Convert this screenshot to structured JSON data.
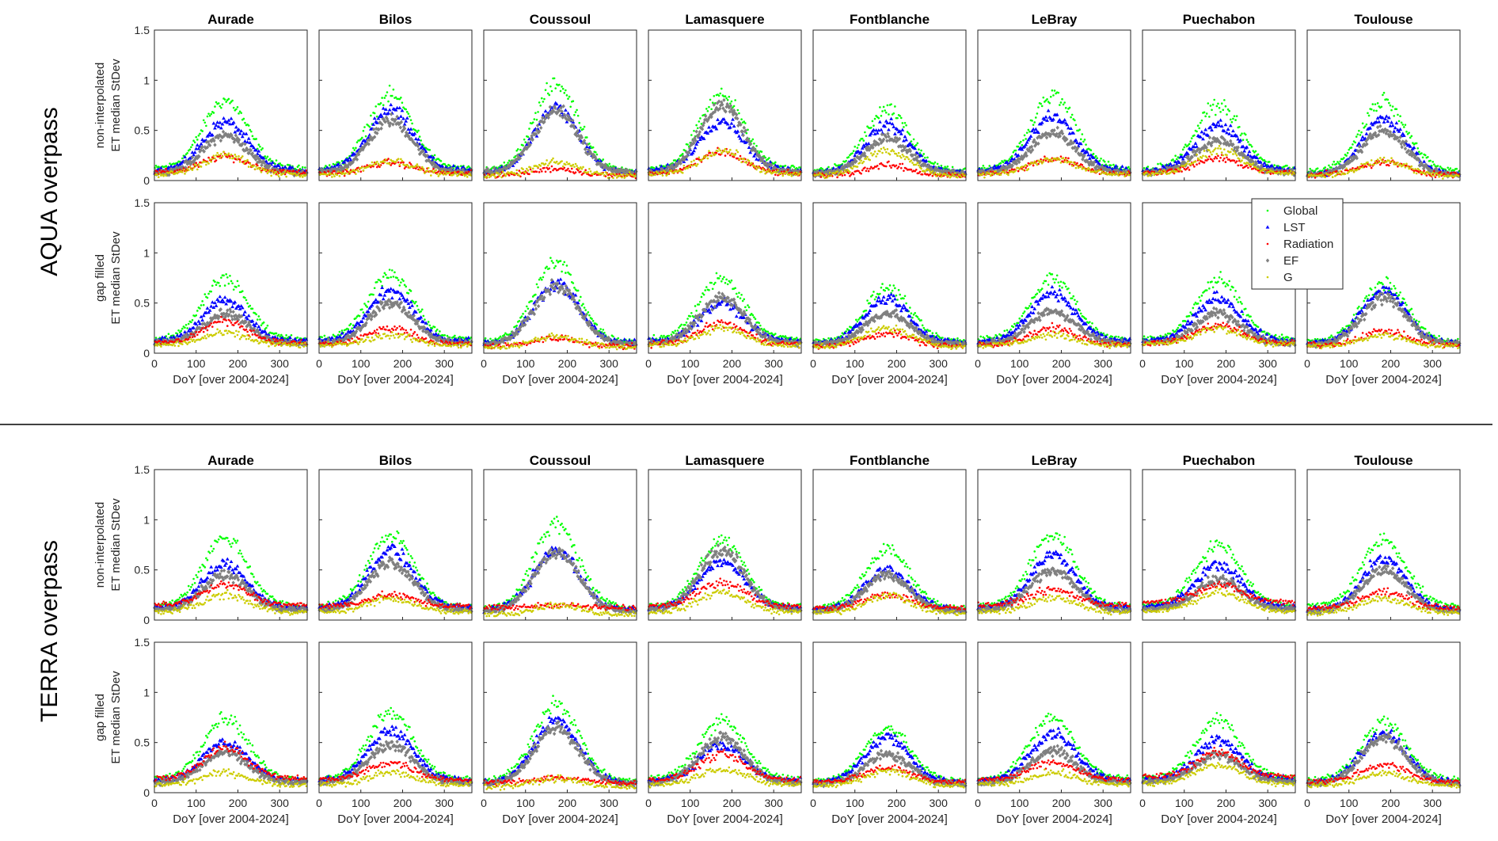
{
  "figure": {
    "blocks": [
      {
        "label": "AQUA overpass",
        "rows": [
          {
            "ylabel_line1": "non-interpolated",
            "ylabel_line2": "ET median StDev"
          },
          {
            "ylabel_line1": "gap filled",
            "ylabel_line2": "ET median StDev"
          }
        ]
      },
      {
        "label": "TERRA overpass",
        "rows": [
          {
            "ylabel_line1": "non-interpolated",
            "ylabel_line2": "ET median StDev"
          },
          {
            "ylabel_line1": "gap filled",
            "ylabel_line2": "ET median StDev"
          }
        ]
      }
    ],
    "sites": [
      "Aurade",
      "Bilos",
      "Coussoul",
      "Lamasquere",
      "Fontblanche",
      "LeBray",
      "Puechabon",
      "Toulouse"
    ],
    "xlabel": "DoY [over 2004-2024]"
  },
  "chart_data": {
    "type": "scatter",
    "layout": "small-multiples grid: 2 overpass blocks x 2 rows x 8 sites",
    "x_axis": {
      "label": "DoY [over 2004-2024]",
      "range": [
        0,
        366
      ],
      "ticks": [
        0,
        100,
        200,
        300
      ]
    },
    "y_axis": {
      "range": [
        0,
        1.5
      ],
      "ticks": [
        0,
        0.5,
        1,
        1.5
      ],
      "tick_labels": [
        "0",
        "0.5",
        "1",
        "1.5"
      ]
    },
    "grid": false,
    "legend": {
      "placement": "right of Puechabon, AQUA gap filled panel",
      "entries": [
        "Global",
        "LST",
        "Radiation",
        "EF",
        "G"
      ]
    },
    "series": [
      {
        "name": "Global",
        "color": "#00ff00",
        "marker": "dot"
      },
      {
        "name": "LST",
        "color": "#0000ff",
        "marker": "triangle"
      },
      {
        "name": "Radiation",
        "color": "#ff0000",
        "marker": "dot"
      },
      {
        "name": "EF",
        "color": "#808080",
        "marker": "diamond"
      },
      {
        "name": "G",
        "color": "#cccc00",
        "marker": "dot"
      }
    ],
    "series_shape_note": "Each series rises from a winter base near DoY 0 and 365 to a summer peak near DoY 170-190; values below are [peak, base] in StDev units per site.",
    "panels": {
      "AQUA_non_interpolated": {
        "Aurade": {
          "Global": [
            0.8,
            0.12
          ],
          "LST": [
            0.58,
            0.1
          ],
          "Radiation": [
            0.24,
            0.08
          ],
          "EF": [
            0.45,
            0.08
          ],
          "G": [
            0.25,
            0.06
          ]
        },
        "Bilos": {
          "Global": [
            0.85,
            0.12
          ],
          "LST": [
            0.7,
            0.1
          ],
          "Radiation": [
            0.18,
            0.07
          ],
          "EF": [
            0.6,
            0.08
          ],
          "G": [
            0.2,
            0.06
          ]
        },
        "Coussoul": {
          "Global": [
            0.95,
            0.1
          ],
          "LST": [
            0.72,
            0.08
          ],
          "Radiation": [
            0.12,
            0.05
          ],
          "EF": [
            0.7,
            0.08
          ],
          "G": [
            0.18,
            0.05
          ]
        },
        "Lamasquere": {
          "Global": [
            0.85,
            0.12
          ],
          "LST": [
            0.6,
            0.1
          ],
          "Radiation": [
            0.28,
            0.07
          ],
          "EF": [
            0.75,
            0.08
          ],
          "G": [
            0.3,
            0.06
          ]
        },
        "Fontblanche": {
          "Global": [
            0.7,
            0.1
          ],
          "LST": [
            0.55,
            0.08
          ],
          "Radiation": [
            0.15,
            0.05
          ],
          "EF": [
            0.42,
            0.07
          ],
          "G": [
            0.3,
            0.05
          ]
        },
        "LeBray": {
          "Global": [
            0.85,
            0.12
          ],
          "LST": [
            0.65,
            0.1
          ],
          "Radiation": [
            0.22,
            0.07
          ],
          "EF": [
            0.48,
            0.08
          ],
          "G": [
            0.22,
            0.06
          ]
        },
        "Puechabon": {
          "Global": [
            0.75,
            0.12
          ],
          "LST": [
            0.55,
            0.1
          ],
          "Radiation": [
            0.22,
            0.08
          ],
          "EF": [
            0.4,
            0.08
          ],
          "G": [
            0.3,
            0.07
          ]
        },
        "Toulouse": {
          "Global": [
            0.8,
            0.1
          ],
          "LST": [
            0.62,
            0.06
          ],
          "Radiation": [
            0.18,
            0.06
          ],
          "EF": [
            0.5,
            0.06
          ],
          "G": [
            0.2,
            0.05
          ]
        }
      },
      "AQUA_gap_filled": {
        "Aurade": {
          "Global": [
            0.75,
            0.14
          ],
          "LST": [
            0.52,
            0.12
          ],
          "Radiation": [
            0.32,
            0.1
          ],
          "EF": [
            0.4,
            0.1
          ],
          "G": [
            0.2,
            0.08
          ]
        },
        "Bilos": {
          "Global": [
            0.8,
            0.14
          ],
          "LST": [
            0.62,
            0.12
          ],
          "Radiation": [
            0.25,
            0.09
          ],
          "EF": [
            0.5,
            0.1
          ],
          "G": [
            0.18,
            0.08
          ]
        },
        "Coussoul": {
          "Global": [
            0.9,
            0.12
          ],
          "LST": [
            0.7,
            0.1
          ],
          "Radiation": [
            0.15,
            0.07
          ],
          "EF": [
            0.68,
            0.09
          ],
          "G": [
            0.17,
            0.06
          ]
        },
        "Lamasquere": {
          "Global": [
            0.75,
            0.14
          ],
          "LST": [
            0.5,
            0.12
          ],
          "Radiation": [
            0.3,
            0.09
          ],
          "EF": [
            0.55,
            0.1
          ],
          "G": [
            0.25,
            0.08
          ]
        },
        "Fontblanche": {
          "Global": [
            0.65,
            0.12
          ],
          "LST": [
            0.55,
            0.1
          ],
          "Radiation": [
            0.2,
            0.07
          ],
          "EF": [
            0.4,
            0.09
          ],
          "G": [
            0.25,
            0.07
          ]
        },
        "LeBray": {
          "Global": [
            0.75,
            0.14
          ],
          "LST": [
            0.6,
            0.12
          ],
          "Radiation": [
            0.25,
            0.09
          ],
          "EF": [
            0.42,
            0.1
          ],
          "G": [
            0.18,
            0.08
          ]
        },
        "Puechabon": {
          "Global": [
            0.72,
            0.14
          ],
          "LST": [
            0.55,
            0.12
          ],
          "Radiation": [
            0.28,
            0.1
          ],
          "EF": [
            0.4,
            0.1
          ],
          "G": [
            0.25,
            0.09
          ]
        },
        "Toulouse": {
          "Global": [
            0.7,
            0.12
          ],
          "LST": [
            0.62,
            0.1
          ],
          "Radiation": [
            0.22,
            0.08
          ],
          "EF": [
            0.55,
            0.09
          ],
          "G": [
            0.18,
            0.07
          ]
        }
      },
      "TERRA_non_interpolated": {
        "Aurade": {
          "Global": [
            0.82,
            0.14
          ],
          "LST": [
            0.55,
            0.12
          ],
          "Radiation": [
            0.35,
            0.15
          ],
          "EF": [
            0.45,
            0.1
          ],
          "G": [
            0.25,
            0.08
          ]
        },
        "Bilos": {
          "Global": [
            0.85,
            0.14
          ],
          "LST": [
            0.7,
            0.12
          ],
          "Radiation": [
            0.25,
            0.14
          ],
          "EF": [
            0.58,
            0.1
          ],
          "G": [
            0.22,
            0.08
          ]
        },
        "Coussoul": {
          "Global": [
            0.95,
            0.12
          ],
          "LST": [
            0.7,
            0.1
          ],
          "Radiation": [
            0.15,
            0.12
          ],
          "EF": [
            0.68,
            0.09
          ],
          "G": [
            0.15,
            0.06
          ]
        },
        "Lamasquere": {
          "Global": [
            0.8,
            0.14
          ],
          "LST": [
            0.58,
            0.12
          ],
          "Radiation": [
            0.38,
            0.14
          ],
          "EF": [
            0.7,
            0.1
          ],
          "G": [
            0.28,
            0.08
          ]
        },
        "Fontblanche": {
          "Global": [
            0.7,
            0.12
          ],
          "LST": [
            0.5,
            0.1
          ],
          "Radiation": [
            0.25,
            0.12
          ],
          "EF": [
            0.45,
            0.09
          ],
          "G": [
            0.25,
            0.07
          ]
        },
        "LeBray": {
          "Global": [
            0.85,
            0.14
          ],
          "LST": [
            0.65,
            0.12
          ],
          "Radiation": [
            0.3,
            0.15
          ],
          "EF": [
            0.5,
            0.1
          ],
          "G": [
            0.22,
            0.08
          ]
        },
        "Puechabon": {
          "Global": [
            0.75,
            0.15
          ],
          "LST": [
            0.55,
            0.13
          ],
          "Radiation": [
            0.35,
            0.18
          ],
          "EF": [
            0.4,
            0.11
          ],
          "G": [
            0.28,
            0.09
          ]
        },
        "Toulouse": {
          "Global": [
            0.8,
            0.14
          ],
          "LST": [
            0.6,
            0.1
          ],
          "Radiation": [
            0.28,
            0.12
          ],
          "EF": [
            0.5,
            0.09
          ],
          "G": [
            0.22,
            0.07
          ]
        }
      },
      "TERRA_gap_filled": {
        "Aurade": {
          "Global": [
            0.75,
            0.14
          ],
          "LST": [
            0.5,
            0.12
          ],
          "Radiation": [
            0.45,
            0.14
          ],
          "EF": [
            0.4,
            0.1
          ],
          "G": [
            0.2,
            0.08
          ]
        },
        "Bilos": {
          "Global": [
            0.8,
            0.14
          ],
          "LST": [
            0.62,
            0.12
          ],
          "Radiation": [
            0.3,
            0.13
          ],
          "EF": [
            0.48,
            0.1
          ],
          "G": [
            0.2,
            0.08
          ]
        },
        "Coussoul": {
          "Global": [
            0.9,
            0.12
          ],
          "LST": [
            0.72,
            0.1
          ],
          "Radiation": [
            0.15,
            0.1
          ],
          "EF": [
            0.65,
            0.09
          ],
          "G": [
            0.14,
            0.06
          ]
        },
        "Lamasquere": {
          "Global": [
            0.72,
            0.14
          ],
          "LST": [
            0.48,
            0.12
          ],
          "Radiation": [
            0.38,
            0.13
          ],
          "EF": [
            0.55,
            0.1
          ],
          "G": [
            0.24,
            0.08
          ]
        },
        "Fontblanche": {
          "Global": [
            0.65,
            0.12
          ],
          "LST": [
            0.55,
            0.1
          ],
          "Radiation": [
            0.25,
            0.11
          ],
          "EF": [
            0.38,
            0.09
          ],
          "G": [
            0.22,
            0.07
          ]
        },
        "LeBray": {
          "Global": [
            0.75,
            0.14
          ],
          "LST": [
            0.6,
            0.12
          ],
          "Radiation": [
            0.3,
            0.13
          ],
          "EF": [
            0.42,
            0.1
          ],
          "G": [
            0.2,
            0.08
          ]
        },
        "Puechabon": {
          "Global": [
            0.72,
            0.15
          ],
          "LST": [
            0.52,
            0.13
          ],
          "Radiation": [
            0.4,
            0.16
          ],
          "EF": [
            0.38,
            0.11
          ],
          "G": [
            0.28,
            0.09
          ]
        },
        "Toulouse": {
          "Global": [
            0.7,
            0.13
          ],
          "LST": [
            0.6,
            0.1
          ],
          "Radiation": [
            0.28,
            0.11
          ],
          "EF": [
            0.55,
            0.09
          ],
          "G": [
            0.2,
            0.07
          ]
        }
      }
    }
  }
}
